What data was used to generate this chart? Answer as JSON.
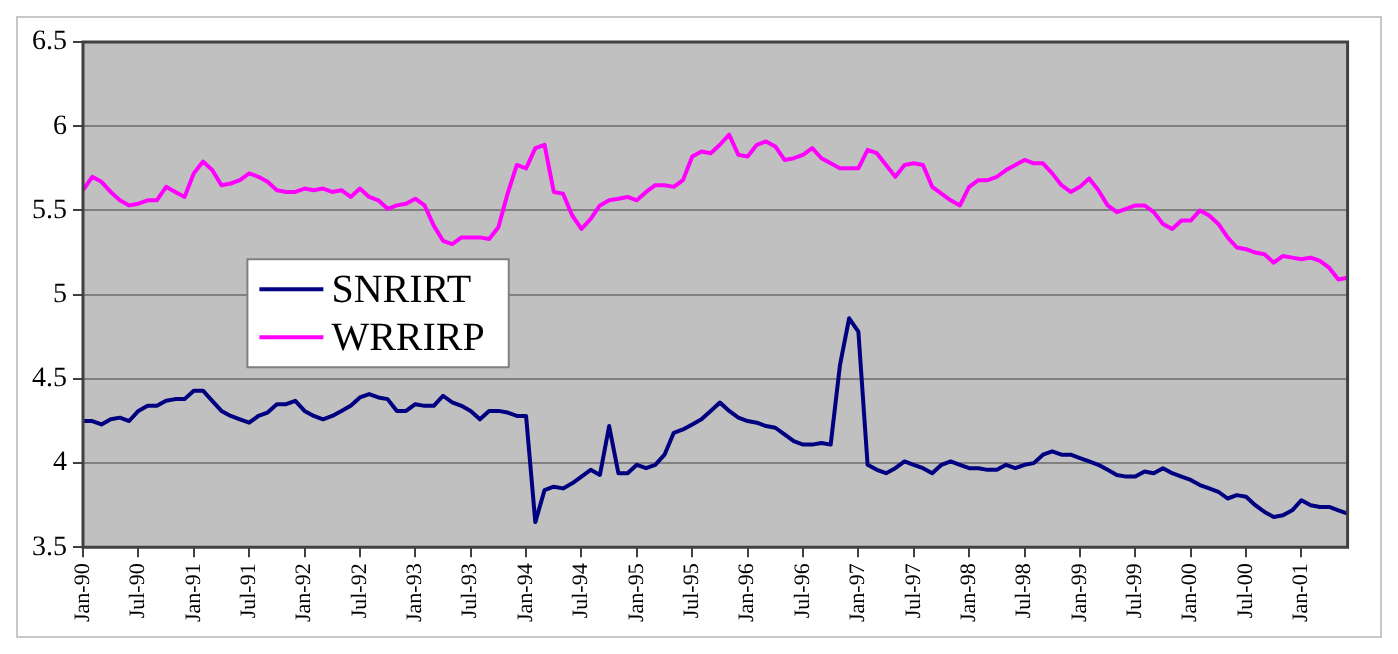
{
  "chart_data": {
    "type": "line",
    "categories": [
      "Jan-90",
      null,
      null,
      null,
      null,
      null,
      "Jul-90",
      null,
      null,
      null,
      null,
      null,
      "Jan-91",
      null,
      null,
      null,
      null,
      null,
      "Jul-91",
      null,
      null,
      null,
      null,
      null,
      "Jan-92",
      null,
      null,
      null,
      null,
      null,
      "Jul-92",
      null,
      null,
      null,
      null,
      null,
      "Jan-93",
      null,
      null,
      null,
      null,
      null,
      "Jul-93",
      null,
      null,
      null,
      null,
      null,
      "Jan-94",
      null,
      null,
      null,
      null,
      null,
      "Jul-94",
      null,
      null,
      null,
      null,
      null,
      "Jan-95",
      null,
      null,
      null,
      null,
      null,
      "Jul-95",
      null,
      null,
      null,
      null,
      null,
      "Jan-96",
      null,
      null,
      null,
      null,
      null,
      "Jul-96",
      null,
      null,
      null,
      null,
      null,
      "Jan-97",
      null,
      null,
      null,
      null,
      null,
      "Jul-97",
      null,
      null,
      null,
      null,
      null,
      "Jan-98",
      null,
      null,
      null,
      null,
      null,
      "Jul-98",
      null,
      null,
      null,
      null,
      null,
      "Jan-99",
      null,
      null,
      null,
      null,
      null,
      "Jul-99",
      null,
      null,
      null,
      null,
      null,
      "Jan-00",
      null,
      null,
      null,
      null,
      null,
      "Jul-00",
      null,
      null,
      null,
      null,
      null,
      "Jan-01",
      null,
      null,
      null,
      null,
      null
    ],
    "series": [
      {
        "name": "SNRIRT",
        "color": "#000080",
        "values": [
          4.25,
          4.25,
          4.23,
          4.26,
          4.27,
          4.25,
          4.31,
          4.34,
          4.34,
          4.37,
          4.38,
          4.38,
          4.43,
          4.43,
          4.37,
          4.31,
          4.28,
          4.26,
          4.24,
          4.28,
          4.3,
          4.35,
          4.35,
          4.37,
          4.31,
          4.28,
          4.26,
          4.28,
          4.31,
          4.34,
          4.39,
          4.41,
          4.39,
          4.38,
          4.31,
          4.31,
          4.35,
          4.34,
          4.34,
          4.4,
          4.36,
          4.34,
          4.31,
          4.26,
          4.31,
          4.31,
          4.3,
          4.28,
          4.28,
          3.65,
          3.84,
          3.86,
          3.85,
          3.88,
          3.92,
          3.96,
          3.93,
          4.22,
          3.94,
          3.94,
          3.99,
          3.97,
          3.99,
          4.05,
          4.18,
          4.2,
          4.23,
          4.26,
          4.31,
          4.36,
          4.31,
          4.27,
          4.25,
          4.24,
          4.22,
          4.21,
          4.17,
          4.13,
          4.11,
          4.11,
          4.12,
          4.11,
          4.58,
          4.86,
          4.78,
          3.99,
          3.96,
          3.94,
          3.97,
          4.01,
          3.99,
          3.97,
          3.94,
          3.99,
          4.01,
          3.99,
          3.97,
          3.97,
          3.96,
          3.96,
          3.99,
          3.97,
          3.99,
          4.0,
          4.05,
          4.07,
          4.05,
          4.05,
          4.03,
          4.01,
          3.99,
          3.96,
          3.93,
          3.92,
          3.92,
          3.95,
          3.94,
          3.97,
          3.94,
          3.92,
          3.9,
          3.87,
          3.85,
          3.83,
          3.79,
          3.81,
          3.8,
          3.75,
          3.71,
          3.68,
          3.69,
          3.72,
          3.78,
          3.75,
          3.74,
          3.74,
          3.72,
          3.7
        ]
      },
      {
        "name": "WRRIRP",
        "color": "#ff00ff",
        "values": [
          5.62,
          5.7,
          5.67,
          5.61,
          5.56,
          5.53,
          5.54,
          5.56,
          5.56,
          5.64,
          5.61,
          5.58,
          5.72,
          5.79,
          5.74,
          5.65,
          5.66,
          5.68,
          5.72,
          5.7,
          5.67,
          5.62,
          5.61,
          5.61,
          5.63,
          5.62,
          5.63,
          5.61,
          5.62,
          5.58,
          5.63,
          5.58,
          5.56,
          5.51,
          5.53,
          5.54,
          5.57,
          5.53,
          5.41,
          5.32,
          5.3,
          5.34,
          5.34,
          5.34,
          5.33,
          5.4,
          5.6,
          5.77,
          5.75,
          5.87,
          5.89,
          5.61,
          5.6,
          5.47,
          5.39,
          5.45,
          5.53,
          5.56,
          5.57,
          5.58,
          5.56,
          5.61,
          5.65,
          5.65,
          5.64,
          5.68,
          5.82,
          5.85,
          5.84,
          5.89,
          5.95,
          5.83,
          5.82,
          5.89,
          5.91,
          5.88,
          5.8,
          5.81,
          5.83,
          5.87,
          5.81,
          5.78,
          5.75,
          5.75,
          5.75,
          5.86,
          5.84,
          5.77,
          5.7,
          5.77,
          5.78,
          5.77,
          5.64,
          5.6,
          5.56,
          5.53,
          5.64,
          5.68,
          5.68,
          5.7,
          5.74,
          5.77,
          5.8,
          5.78,
          5.78,
          5.72,
          5.65,
          5.61,
          5.64,
          5.69,
          5.62,
          5.53,
          5.49,
          5.51,
          5.53,
          5.53,
          5.49,
          5.42,
          5.39,
          5.44,
          5.44,
          5.5,
          5.47,
          5.42,
          5.34,
          5.28,
          5.27,
          5.25,
          5.24,
          5.19,
          5.23,
          5.22,
          5.21,
          5.22,
          5.2,
          5.16,
          5.09,
          5.1
        ]
      }
    ],
    "ylim": [
      3.5,
      6.5
    ],
    "yticks": [
      3.5,
      4,
      4.5,
      5,
      5.5,
      6,
      6.5
    ],
    "grid": "y",
    "legend": "left",
    "marker": "none",
    "line_style": "solid"
  }
}
